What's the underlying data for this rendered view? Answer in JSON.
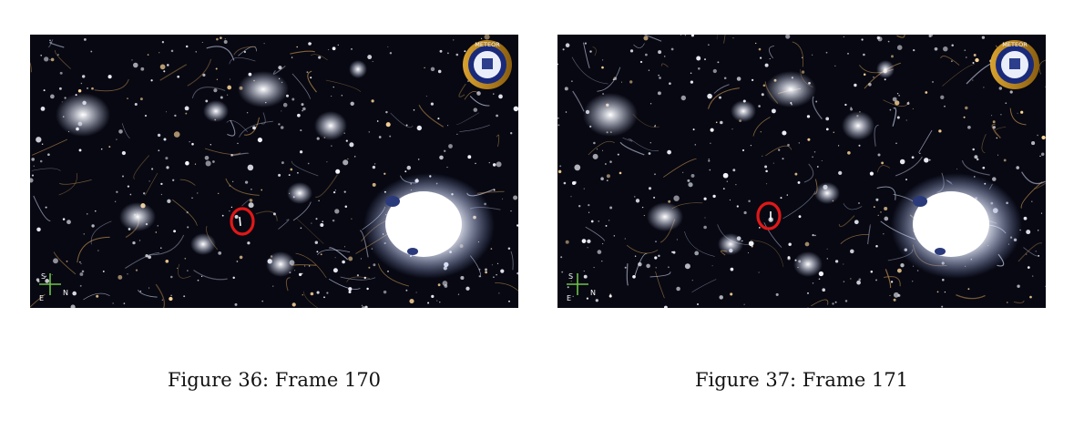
{
  "figures": [
    {
      "caption": "Figure 36: Frame 170",
      "image": "night-satellite-image-city-lights",
      "marker": "red-circle-annotation",
      "logo": "meteor-mission-patch",
      "compass": "compass-rose"
    },
    {
      "caption": "Figure 37: Frame 171",
      "image": "night-satellite-image-city-lights",
      "marker": "red-circle-annotation",
      "logo": "meteor-mission-patch",
      "compass": "compass-rose"
    }
  ],
  "logo_text": "METEOR",
  "compass_labels": [
    "S",
    "E",
    "N"
  ],
  "colors": {
    "background": "#070812",
    "city_lights": "#fffef2",
    "marker": "#e01818",
    "compass": "#6ec24a"
  }
}
